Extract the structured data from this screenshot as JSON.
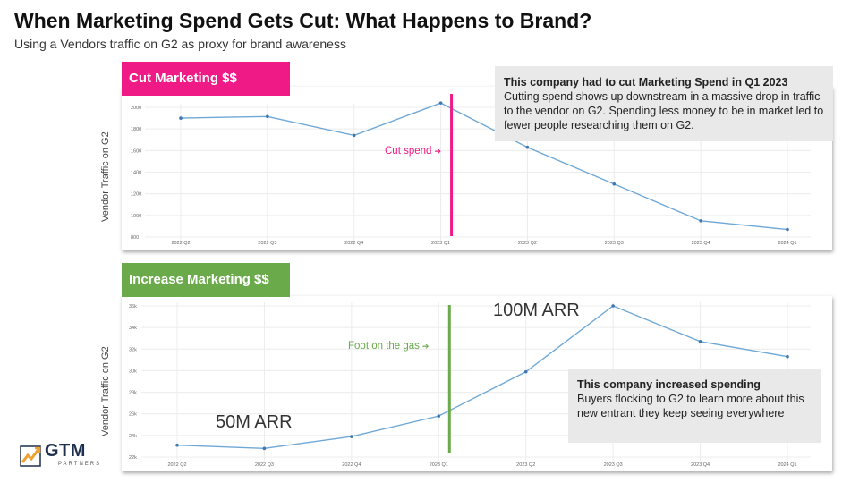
{
  "header": {
    "title": "When Marketing Spend Gets Cut: What Happens to Brand?",
    "subtitle": "Using a Vendors traffic on G2 as proxy for brand awareness"
  },
  "colors": {
    "magenta": "#ef1a85",
    "green": "#6aaa4a",
    "line": "#6fa8d6",
    "grid": "#ececec"
  },
  "logo": {
    "name": "GTM",
    "sub": "PARTNERS",
    "icon": "chart-growth-icon"
  },
  "chart_data": [
    {
      "type": "line",
      "tab_label": "Cut Marketing $$",
      "ylabel": "Vendor Traffic on G2",
      "categories": [
        "2022 Q2",
        "2022 Q3",
        "2022 Q4",
        "2023 Q1",
        "2023 Q2",
        "2023 Q3",
        "2023 Q4",
        "2024 Q1"
      ],
      "values": [
        1900,
        1915,
        1740,
        2040,
        1630,
        1290,
        950,
        870
      ],
      "ylim": [
        800,
        2000
      ],
      "yticks": [
        800,
        1000,
        1200,
        1400,
        1600,
        1800,
        2000
      ],
      "ytick_labels": [
        "800",
        "1000",
        "1200",
        "1400",
        "1600",
        "1800",
        "2000"
      ],
      "marker_index": 3,
      "marker_label": "Cut spend",
      "callout": {
        "title": "This company had to cut Marketing Spend in Q1 2023",
        "body": "Cutting spend shows up downstream in a massive drop in traffic to the vendor on G2. Spending less money to be in market led to fewer people researching them on G2."
      }
    },
    {
      "type": "line",
      "tab_label": "Increase Marketing $$",
      "ylabel": "Vendor Traffic on G2",
      "categories": [
        "2022 Q2",
        "2022 Q3",
        "2022 Q4",
        "2023 Q1",
        "2023 Q2",
        "2023 Q3",
        "2023 Q4",
        "2024 Q1"
      ],
      "values": [
        23100,
        22800,
        23900,
        25800,
        29900,
        36000,
        32700,
        31300
      ],
      "ylim": [
        22000,
        36000
      ],
      "yticks": [
        22000,
        24000,
        26000,
        28000,
        30000,
        32000,
        34000,
        36000
      ],
      "ytick_labels": [
        "22k",
        "24k",
        "26k",
        "28k",
        "30k",
        "32k",
        "34k",
        "36k"
      ],
      "marker_index": 3,
      "marker_label": "Foot on the gas",
      "annotations": [
        "100M ARR",
        "50M ARR"
      ],
      "callout": {
        "title": "This company increased spending",
        "body": "Buyers flocking to G2 to learn more about this new entrant they keep seeing everywhere"
      }
    }
  ]
}
